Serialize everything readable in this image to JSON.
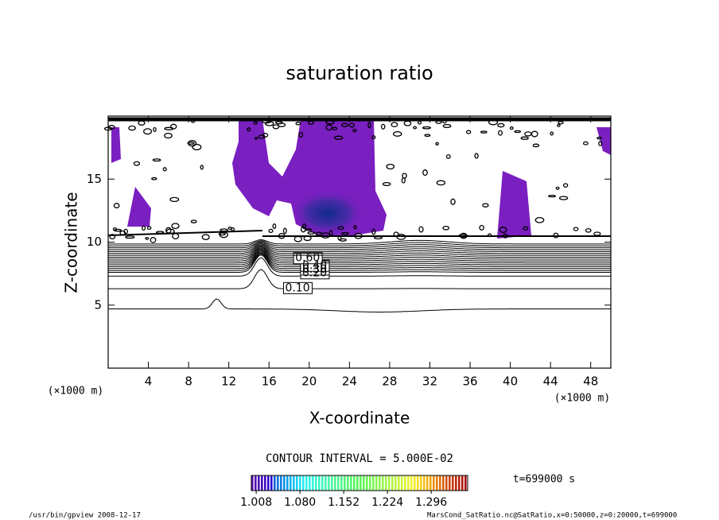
{
  "chart_data": {
    "type": "contour",
    "title": "saturation ratio",
    "xlabel": "X-coordinate",
    "ylabel": "Z-coordinate",
    "x_unit": "(×1000 m)",
    "xlim": [
      0,
      50
    ],
    "ylim": [
      0,
      20
    ],
    "xticks": [
      4,
      8,
      12,
      16,
      20,
      24,
      28,
      32,
      36,
      40,
      44,
      48
    ],
    "yticks": [
      5,
      10,
      15
    ],
    "contour_interval_text": "CONTOUR INTERVAL = 5.000E-02",
    "contour_levels": [
      0.05,
      {
        "value": 0.1,
        "label": "0.10"
      },
      0.15,
      {
        "value": 0.2,
        "label": "0.20"
      },
      0.25,
      {
        "value": 0.3,
        "label": "0.30"
      },
      0.35,
      {
        "value": 0.4,
        "label": "0.40"
      },
      0.45,
      0.5,
      0.55,
      {
        "value": 0.6,
        "label": "0.60"
      },
      0.65,
      0.7,
      0.75,
      0.8,
      0.85,
      0.9,
      0.95
    ],
    "colorbar": {
      "clim": [
        1.0,
        1.356
      ],
      "ticks": [
        1.008,
        {
          "value": 1.08,
          "label": "1.080"
        },
        1.152,
        1.224,
        1.296
      ]
    },
    "time_label": "t=699000 s",
    "footer_left": "/usr/bin/gpview  2008-12-17",
    "footer_right": "MarsCond_SatRatio.nc@SatRatio,x=0:50000,z=0:20000,t=699000"
  }
}
